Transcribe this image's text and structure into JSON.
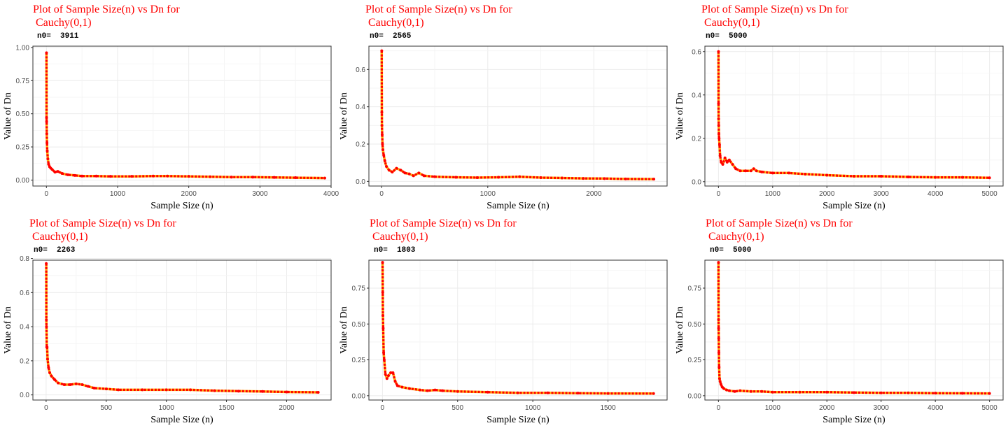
{
  "colors": {
    "line": "#ffb90f",
    "point": "#ff0000",
    "title": "#ff0000",
    "grid": "#ebebeb",
    "border": "#333333"
  },
  "chart_data": [
    {
      "type": "line",
      "title": "Plot of Sample Size(n) vs Dn for\n Cauchy(0,1)",
      "subtitle": "n0=  3911",
      "xlabel": "Sample Size (n)",
      "ylabel": "Value of Dn",
      "xlim": [
        -190,
        4000
      ],
      "ylim": [
        -0.045,
        1.01
      ],
      "xticks": [
        0,
        1000,
        2000,
        3000,
        4000
      ],
      "xtick_labels": [
        "0",
        "1000",
        "2000",
        "3000",
        "4000"
      ],
      "yticks": [
        0,
        0.25,
        0.5,
        0.75,
        1.0
      ],
      "ytick_labels": [
        "0.00",
        "0.25",
        "0.50",
        "0.75",
        "1.00"
      ],
      "grid": true,
      "series": [
        {
          "x": [
            1,
            2,
            3,
            5,
            8,
            12,
            20,
            30,
            45,
            60,
            80,
            120,
            160,
            220,
            300,
            400,
            500,
            700,
            900,
            1200,
            1500,
            1700,
            2000,
            2300,
            2600,
            2900,
            3200,
            3500,
            3911
          ],
          "y": [
            0.96,
            0.47,
            0.44,
            0.35,
            0.28,
            0.22,
            0.16,
            0.12,
            0.1,
            0.09,
            0.08,
            0.06,
            0.065,
            0.05,
            0.04,
            0.035,
            0.03,
            0.03,
            0.028,
            0.028,
            0.03,
            0.03,
            0.028,
            0.025,
            0.022,
            0.022,
            0.02,
            0.018,
            0.015
          ]
        }
      ]
    },
    {
      "type": "line",
      "title": "Plot of Sample Size(n) vs Dn for\n Cauchy(0,1)",
      "subtitle": "n0=  2565",
      "xlabel": "Sample Size (n)",
      "ylabel": "Value of Dn",
      "xlim": [
        -120,
        2690
      ],
      "ylim": [
        -0.025,
        0.725
      ],
      "xticks": [
        0,
        1000,
        2000
      ],
      "xtick_labels": [
        "0",
        "1000",
        "2000"
      ],
      "yticks": [
        0,
        0.2,
        0.4,
        0.6
      ],
      "ytick_labels": [
        "0.0",
        "0.2",
        "0.4",
        "0.6"
      ],
      "grid": true,
      "series": [
        {
          "x": [
            1,
            2,
            3,
            5,
            8,
            12,
            20,
            30,
            45,
            70,
            100,
            140,
            180,
            220,
            260,
            300,
            350,
            400,
            500,
            700,
            900,
            1100,
            1300,
            1500,
            1700,
            1900,
            2100,
            2300,
            2565
          ],
          "y": [
            0.7,
            0.37,
            0.3,
            0.25,
            0.2,
            0.17,
            0.14,
            0.11,
            0.08,
            0.06,
            0.05,
            0.07,
            0.06,
            0.045,
            0.04,
            0.03,
            0.045,
            0.03,
            0.025,
            0.022,
            0.02,
            0.022,
            0.025,
            0.02,
            0.018,
            0.016,
            0.015,
            0.013,
            0.012
          ]
        }
      ]
    },
    {
      "type": "line",
      "title": "Plot of Sample Size(n) vs Dn for\n Cauchy(0,1)",
      "subtitle": "n0=  5000",
      "xlabel": "Sample Size (n)",
      "ylabel": "Value of Dn",
      "xlim": [
        -250,
        5250
      ],
      "ylim": [
        -0.02,
        0.625
      ],
      "xticks": [
        0,
        1000,
        2000,
        3000,
        4000,
        5000
      ],
      "xtick_labels": [
        "0",
        "1000",
        "2000",
        "3000",
        "4000",
        "5000"
      ],
      "yticks": [
        0,
        0.2,
        0.4,
        0.6
      ],
      "ytick_labels": [
        "0.0",
        "0.2",
        "0.4",
        "0.6"
      ],
      "grid": true,
      "series": [
        {
          "x": [
            1,
            2,
            3,
            5,
            8,
            12,
            20,
            30,
            50,
            80,
            120,
            160,
            200,
            260,
            320,
            400,
            500,
            600,
            650,
            700,
            800,
            1000,
            1300,
            1600,
            2000,
            2500,
            3000,
            3500,
            4000,
            4500,
            5000
          ],
          "y": [
            0.6,
            0.36,
            0.29,
            0.26,
            0.22,
            0.2,
            0.17,
            0.12,
            0.09,
            0.08,
            0.11,
            0.09,
            0.1,
            0.08,
            0.06,
            0.05,
            0.05,
            0.05,
            0.06,
            0.05,
            0.045,
            0.04,
            0.04,
            0.035,
            0.03,
            0.025,
            0.025,
            0.022,
            0.02,
            0.02,
            0.018
          ]
        }
      ]
    },
    {
      "type": "line",
      "title": "Plot of Sample Size(n) vs Dn for\n Cauchy(0,1)",
      "subtitle": "n0=  2263",
      "xlabel": "Sample Size (n)",
      "ylabel": "Value of Dn",
      "xlim": [
        -110,
        2370
      ],
      "ylim": [
        -0.03,
        0.79
      ],
      "xticks": [
        0,
        500,
        1000,
        1500,
        2000
      ],
      "xtick_labels": [
        "0",
        "500",
        "1000",
        "1500",
        "2000"
      ],
      "yticks": [
        0,
        0.2,
        0.4,
        0.6,
        0.8
      ],
      "ytick_labels": [
        "0.0",
        "0.2",
        "0.4",
        "0.6",
        "0.8"
      ],
      "grid": true,
      "series": [
        {
          "x": [
            1,
            2,
            3,
            5,
            8,
            12,
            20,
            30,
            45,
            70,
            100,
            150,
            200,
            250,
            300,
            350,
            400,
            500,
            600,
            800,
            1000,
            1200,
            1400,
            1600,
            1800,
            2000,
            2263
          ],
          "y": [
            0.77,
            0.44,
            0.4,
            0.28,
            0.28,
            0.21,
            0.16,
            0.13,
            0.11,
            0.09,
            0.07,
            0.06,
            0.06,
            0.065,
            0.06,
            0.05,
            0.04,
            0.035,
            0.03,
            0.03,
            0.03,
            0.03,
            0.025,
            0.022,
            0.02,
            0.017,
            0.015
          ]
        }
      ]
    },
    {
      "type": "line",
      "title": "Plot of Sample Size(n) vs Dn for\n Cauchy(0,1)",
      "subtitle": "n0=  1803",
      "xlabel": "Sample Size (n)",
      "ylabel": "Value of Dn",
      "xlim": [
        -90,
        1893
      ],
      "ylim": [
        -0.03,
        0.945
      ],
      "xticks": [
        0,
        500,
        1000,
        1500
      ],
      "xtick_labels": [
        "0",
        "500",
        "1000",
        "1500"
      ],
      "yticks": [
        0,
        0.25,
        0.5,
        0.75
      ],
      "ytick_labels": [
        "0.00",
        "0.25",
        "0.50",
        "0.75"
      ],
      "grid": true,
      "series": [
        {
          "x": [
            1,
            2,
            3,
            5,
            8,
            12,
            20,
            30,
            40,
            55,
            70,
            85,
            100,
            130,
            180,
            250,
            300,
            350,
            400,
            500,
            700,
            900,
            1100,
            1300,
            1500,
            1803
          ],
          "y": [
            0.93,
            0.72,
            0.56,
            0.47,
            0.3,
            0.25,
            0.15,
            0.12,
            0.14,
            0.16,
            0.16,
            0.1,
            0.07,
            0.06,
            0.05,
            0.04,
            0.035,
            0.04,
            0.035,
            0.03,
            0.025,
            0.02,
            0.02,
            0.018,
            0.016,
            0.015
          ]
        }
      ]
    },
    {
      "type": "line",
      "title": "Plot of Sample Size(n) vs Dn for\n Cauchy(0,1)",
      "subtitle": "n0=  5000",
      "xlabel": "Sample Size (n)",
      "ylabel": "Value of Dn",
      "xlim": [
        -250,
        5250
      ],
      "ylim": [
        -0.03,
        0.945
      ],
      "xticks": [
        0,
        1000,
        2000,
        3000,
        4000,
        5000
      ],
      "xtick_labels": [
        "0",
        "1000",
        "2000",
        "3000",
        "4000",
        "5000"
      ],
      "yticks": [
        0,
        0.25,
        0.5,
        0.75
      ],
      "ytick_labels": [
        "0.00",
        "0.25",
        "0.50",
        "0.75"
      ],
      "grid": true,
      "series": [
        {
          "x": [
            1,
            2,
            3,
            5,
            8,
            12,
            20,
            30,
            45,
            70,
            100,
            150,
            200,
            300,
            400,
            600,
            800,
            1000,
            1500,
            2000,
            2500,
            3000,
            3500,
            4000,
            4500,
            5000
          ],
          "y": [
            0.93,
            0.53,
            0.47,
            0.4,
            0.3,
            0.2,
            0.12,
            0.1,
            0.08,
            0.06,
            0.05,
            0.04,
            0.035,
            0.03,
            0.035,
            0.03,
            0.03,
            0.025,
            0.025,
            0.025,
            0.022,
            0.02,
            0.02,
            0.018,
            0.017,
            0.016
          ]
        }
      ]
    }
  ]
}
